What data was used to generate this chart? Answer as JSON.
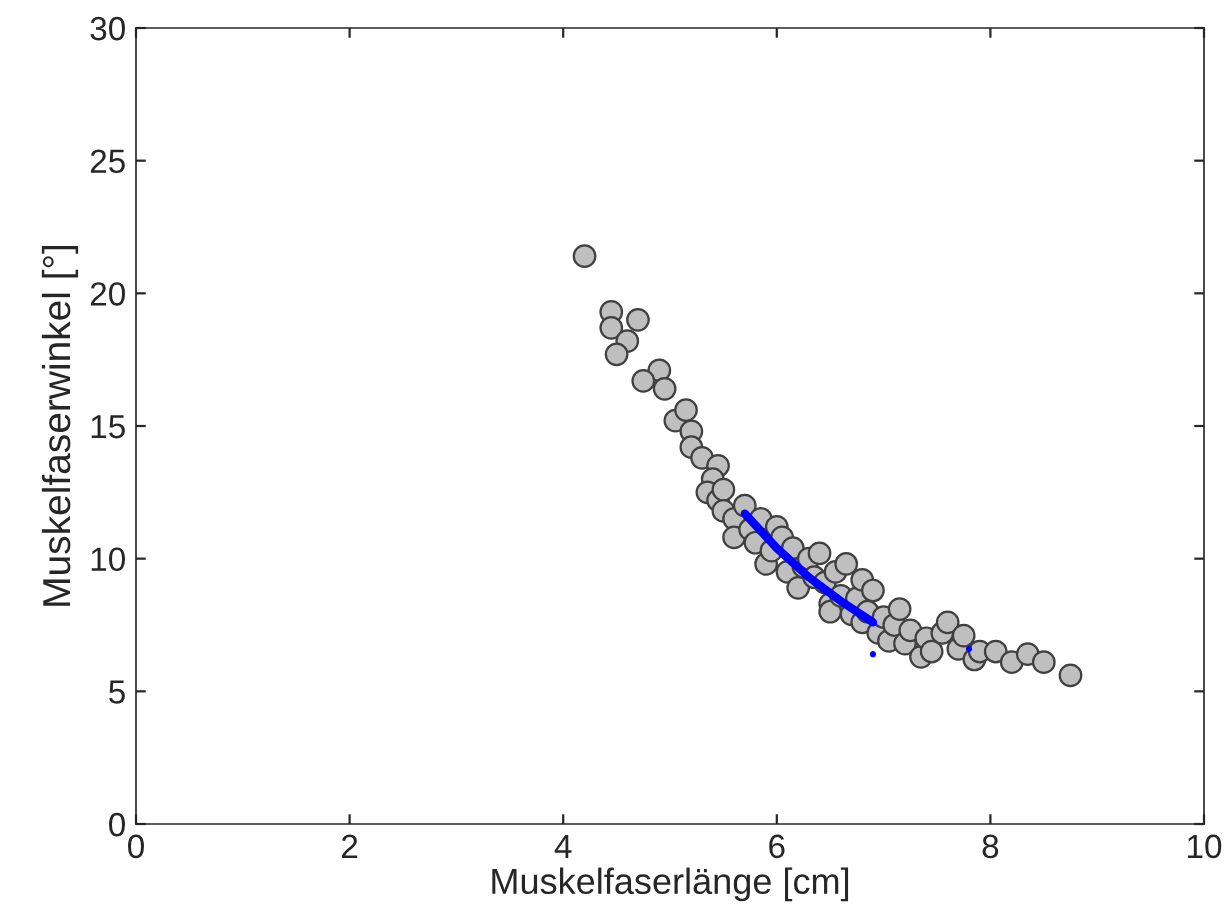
{
  "chart_data": {
    "type": "scatter",
    "xlabel": "Muskelfaserlänge [cm]",
    "ylabel": "Muskelfaserwinkel [°]",
    "xlim": [
      0,
      10
    ],
    "ylim": [
      0,
      30
    ],
    "xticks": [
      0,
      2,
      4,
      6,
      8,
      10
    ],
    "yticks": [
      0,
      5,
      10,
      15,
      20,
      25,
      30
    ],
    "grid": false,
    "series": [
      {
        "marker": "circle",
        "color": "#bfbfbf",
        "x": [
          4.2,
          4.45,
          4.45,
          4.7,
          4.6,
          4.5,
          4.9,
          4.75,
          4.95,
          5.05,
          5.15,
          5.2,
          5.2,
          5.3,
          5.45,
          5.4,
          5.35,
          5.45,
          5.5,
          5.5,
          5.6,
          5.7,
          5.6,
          5.75,
          5.8,
          5.85,
          5.9,
          5.95,
          6.0,
          6.05,
          6.1,
          6.15,
          6.2,
          6.25,
          6.3,
          6.35,
          6.4,
          6.45,
          6.5,
          6.5,
          6.55,
          6.6,
          6.65,
          6.7,
          6.75,
          6.8,
          6.8,
          6.85,
          6.9,
          6.95,
          7.0,
          7.05,
          7.1,
          7.15,
          7.2,
          7.25,
          7.35,
          7.4,
          7.45,
          7.55,
          7.6,
          7.7,
          7.75,
          7.85,
          7.9,
          8.05,
          8.2,
          8.35,
          8.5,
          8.75
        ],
        "values": [
          21.4,
          19.3,
          18.7,
          19.0,
          18.2,
          17.7,
          17.1,
          16.7,
          16.4,
          15.2,
          15.6,
          14.8,
          14.2,
          13.8,
          13.5,
          13.0,
          12.5,
          12.2,
          12.6,
          11.8,
          11.5,
          12.0,
          10.8,
          11.1,
          10.6,
          11.5,
          9.8,
          10.3,
          11.2,
          10.8,
          9.5,
          10.4,
          8.9,
          9.7,
          10.0,
          9.3,
          10.2,
          9.1,
          8.3,
          8.0,
          9.5,
          8.6,
          9.8,
          7.9,
          8.5,
          7.6,
          9.2,
          8.0,
          8.8,
          7.2,
          7.8,
          6.9,
          7.5,
          8.1,
          6.8,
          7.3,
          6.3,
          7.0,
          6.5,
          7.2,
          7.6,
          6.6,
          7.1,
          6.2,
          6.5,
          6.5,
          6.1,
          6.4,
          6.1,
          5.6
        ]
      },
      {
        "type": "line",
        "marker": "none",
        "line_style": "solid",
        "color": "#0000ff",
        "x": [
          5.7,
          6.0,
          6.3,
          6.6,
          6.9
        ],
        "values": [
          11.7,
          10.4,
          9.3,
          8.4,
          7.6
        ]
      },
      {
        "type": "scatter",
        "marker": "circle",
        "color": "#0000ff",
        "x": [
          6.9,
          7.8
        ],
        "values": [
          6.4,
          6.6
        ]
      }
    ]
  }
}
